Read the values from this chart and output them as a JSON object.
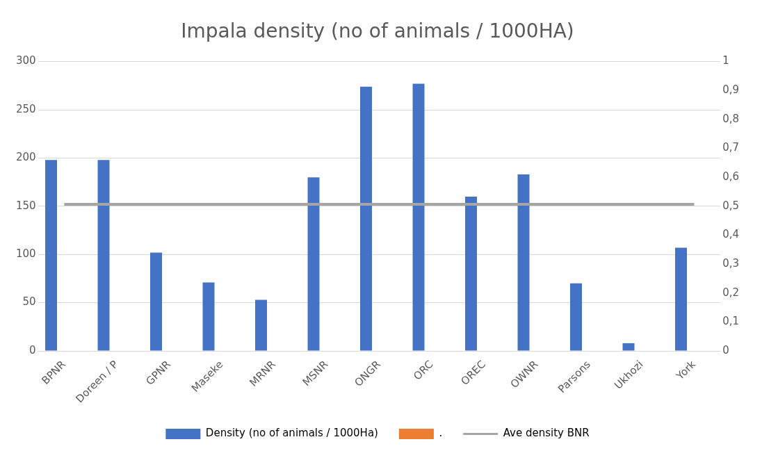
{
  "chart_data": {
    "type": "bar",
    "title": "Impala density (no of animals / 1000HA)",
    "categories": [
      "BPNR",
      "Doreen / P",
      "GPNR",
      "Maseke",
      "MRNR",
      "MSNR",
      "ONGR",
      "ORC",
      "OREC",
      "OWNR",
      "Parsons",
      "Ukhozi",
      "York"
    ],
    "series": [
      {
        "name": "Density (no of animals / 1000Ha)",
        "color": "#4472c4",
        "values": [
          198,
          198,
          102,
          71,
          53,
          180,
          274,
          277,
          160,
          183,
          70,
          8,
          107
        ]
      },
      {
        "name": ".",
        "color": "#ed7d31",
        "axis": "y2",
        "values": [
          null,
          null,
          null,
          null,
          null,
          null,
          null,
          null,
          null,
          null,
          null,
          null,
          null
        ]
      },
      {
        "name": "Ave density BNR",
        "type": "line",
        "color": "#a5a5a5",
        "values": [
          152,
          152,
          152,
          152,
          152,
          152,
          152,
          152,
          152,
          152,
          152,
          152,
          152
        ]
      }
    ],
    "ylim": [
      0,
      300
    ],
    "yticks": [
      0,
      50,
      100,
      150,
      200,
      250,
      300
    ],
    "y2lim": [
      0,
      1
    ],
    "y2ticks": [
      0,
      {
        "value": 0.1,
        "label": "0,1"
      },
      {
        "value": 0.2,
        "label": "0,2"
      },
      {
        "value": 0.3,
        "label": "0,3"
      },
      {
        "value": 0.4,
        "label": "0,4"
      },
      {
        "value": 0.5,
        "label": "0,5"
      },
      {
        "value": 0.6,
        "label": "0,6"
      },
      {
        "value": 0.7,
        "label": "0,7"
      },
      {
        "value": 0.8,
        "label": "0,8"
      },
      {
        "value": 0.9,
        "label": "0,9"
      },
      1
    ],
    "grid": "y",
    "legend": "bottom",
    "marker": "none"
  }
}
